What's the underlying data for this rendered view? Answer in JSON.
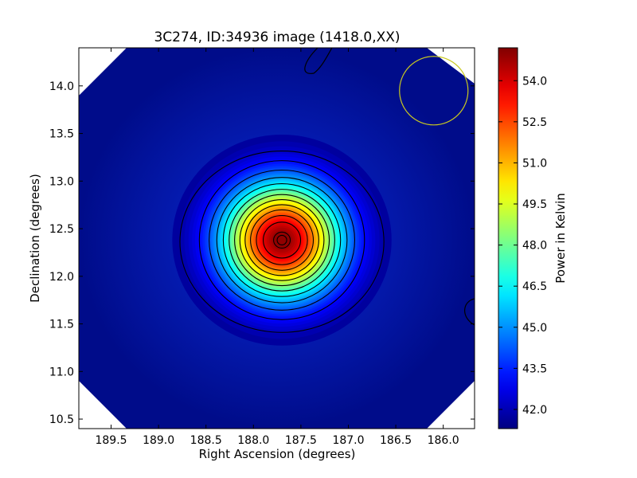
{
  "chart_data": {
    "type": "heatmap",
    "title": "3C274, ID:34936 image (1418.0,XX)",
    "xlabel": "Right Ascension (degrees)",
    "ylabel": "Declination (degrees)",
    "xlim": [
      189.84,
      185.67
    ],
    "ylim": [
      10.4,
      14.4
    ],
    "x_axis_inverted": true,
    "x_ticks": [
      189.5,
      189.0,
      188.5,
      188.0,
      187.5,
      187.0,
      186.5,
      186.0
    ],
    "x_tick_labels": [
      "189.5",
      "189.0",
      "188.5",
      "188.0",
      "187.5",
      "187.0",
      "186.5",
      "186.0"
    ],
    "y_ticks": [
      10.5,
      11.0,
      11.5,
      12.0,
      12.5,
      13.0,
      13.5,
      14.0
    ],
    "y_tick_labels": [
      "10.5",
      "11.0",
      "11.5",
      "12.0",
      "12.5",
      "13.0",
      "13.5",
      "14.0"
    ],
    "source": {
      "ra": 187.7,
      "dec": 12.38,
      "peak_kelvin": 55.2,
      "background_kelvin": 41.3
    },
    "contour_levels_count": 13,
    "beam_circle": {
      "ra": 186.1,
      "dec": 13.95,
      "radius_deg": 0.36,
      "color": "#c8c820"
    },
    "colorbar": {
      "label": "Power in Kelvin",
      "range": [
        41.3,
        55.2
      ],
      "ticks": [
        42.0,
        43.5,
        45.0,
        46.5,
        48.0,
        49.5,
        51.0,
        52.5,
        54.0
      ],
      "tick_labels": [
        "42.0",
        "43.5",
        "45.0",
        "46.5",
        "48.0",
        "49.5",
        "51.0",
        "52.5",
        "54.0"
      ],
      "colormap": "jet"
    },
    "grid": false
  }
}
